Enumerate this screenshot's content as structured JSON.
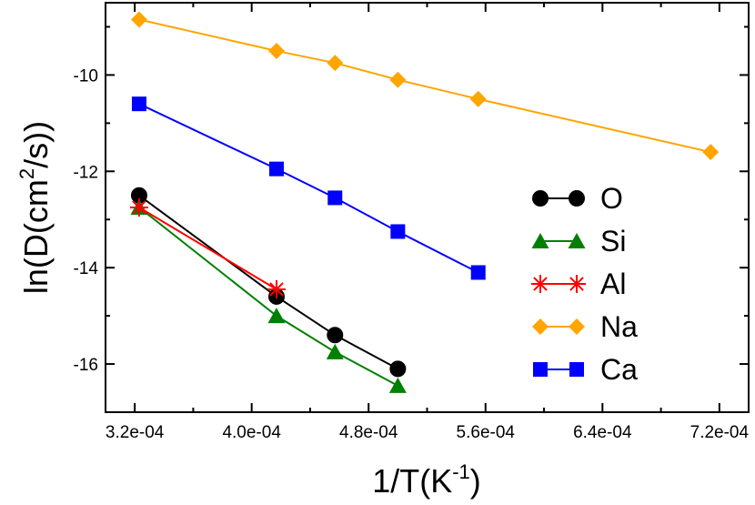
{
  "chart_data": {
    "type": "line",
    "title": "",
    "xlabel": {
      "base": "1/T(K",
      "sup": "-1",
      "tail": ")"
    },
    "ylabel": {
      "base": "ln(D(cm",
      "sup": "2",
      "tail": "/s))"
    },
    "xlim": [
      0.0003,
      0.00074
    ],
    "ylim": [
      -17,
      -8.5
    ],
    "x_ticks": [
      {
        "value": 0.00032,
        "label": "3.2e-04"
      },
      {
        "value": 0.0004,
        "label": "4.0e-04"
      },
      {
        "value": 0.00048,
        "label": "4.8e-04"
      },
      {
        "value": 0.00056,
        "label": "5.6e-04"
      },
      {
        "value": 0.00064,
        "label": "6.4e-04"
      },
      {
        "value": 0.00072,
        "label": "7.2e-04"
      }
    ],
    "x_minor_ticks": [
      0.00036,
      0.00044,
      0.00052,
      0.0006,
      0.00068
    ],
    "y_ticks": [
      {
        "value": -10,
        "label": "-10"
      },
      {
        "value": -12,
        "label": "-12"
      },
      {
        "value": -14,
        "label": "-14"
      },
      {
        "value": -16,
        "label": "-16"
      }
    ],
    "y_minor_ticks": [
      -9,
      -11,
      -13,
      -15
    ],
    "grid": false,
    "legend_position": "right",
    "series": [
      {
        "name": "O",
        "color": "#000000",
        "marker": "circle",
        "x": [
          0.000323,
          0.000417,
          0.000457,
          0.0005
        ],
        "y": [
          -12.5,
          -14.6,
          -15.4,
          -16.1
        ]
      },
      {
        "name": "Si",
        "color": "#008000",
        "marker": "triangle",
        "x": [
          0.000323,
          0.000417,
          0.000457,
          0.0005
        ],
        "y": [
          -12.75,
          -15.0,
          -15.75,
          -16.45
        ]
      },
      {
        "name": "Al",
        "color": "#ff0000",
        "marker": "star",
        "x": [
          0.000323,
          0.000417
        ],
        "y": [
          -12.75,
          -14.45
        ]
      },
      {
        "name": "Na",
        "color": "#ffa500",
        "marker": "diamond",
        "x": [
          0.000323,
          0.000417,
          0.000457,
          0.0005,
          0.000555,
          0.000714
        ],
        "y": [
          -8.85,
          -9.5,
          -9.75,
          -10.1,
          -10.5,
          -11.6
        ]
      },
      {
        "name": "Ca",
        "color": "#0000ff",
        "marker": "square",
        "x": [
          0.000323,
          0.000417,
          0.000457,
          0.0005,
          0.000555
        ],
        "y": [
          -10.6,
          -11.95,
          -12.55,
          -13.25,
          -14.1
        ]
      }
    ]
  }
}
